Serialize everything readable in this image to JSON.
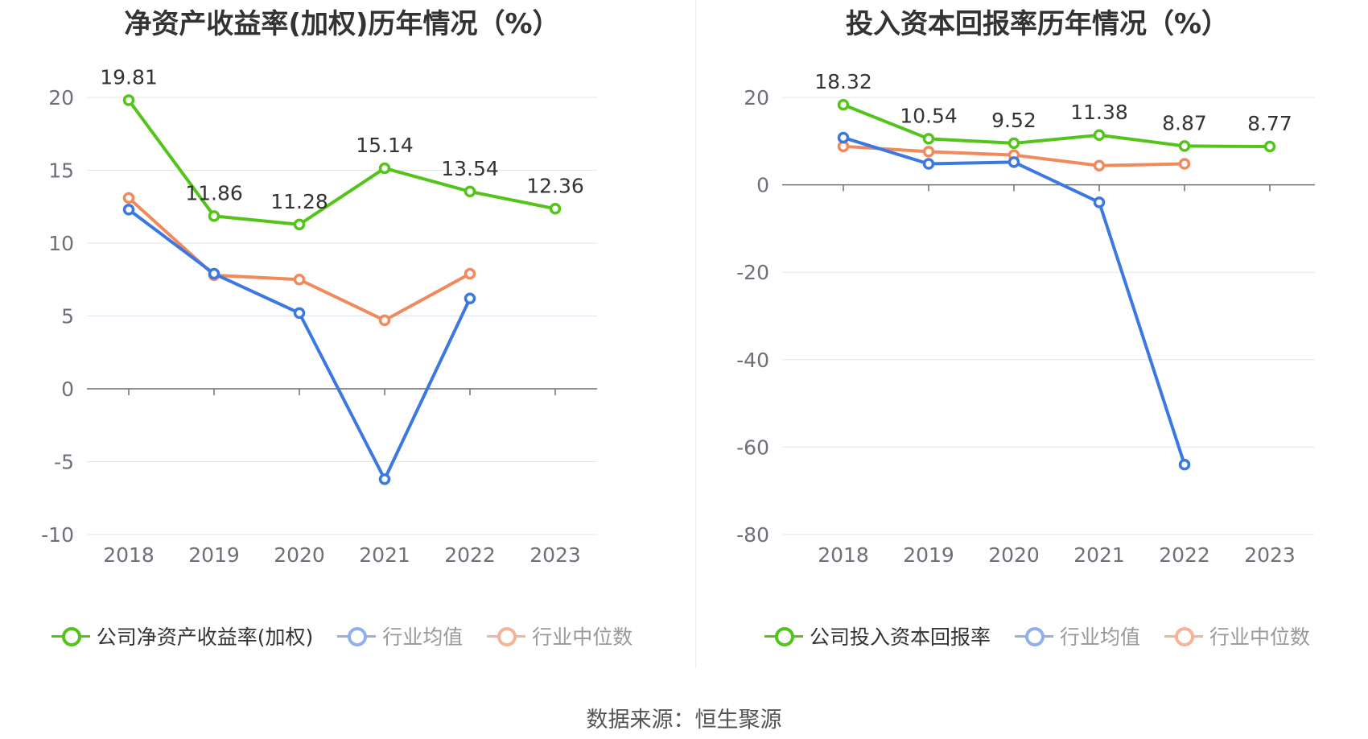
{
  "charts": [
    {
      "title": "净资产收益率(加权)历年情况（%）",
      "legend": [
        {
          "label": "公司净资产收益率(加权)",
          "color": "#52c41a",
          "text_color": "#333333"
        },
        {
          "label": "行业均值",
          "color": "#8fb0ea",
          "text_color": "#999999"
        },
        {
          "label": "行业中位数",
          "color": "#f5b49a",
          "text_color": "#999999"
        }
      ]
    },
    {
      "title": "投入资本回报率历年情况（%）",
      "legend": [
        {
          "label": "公司投入资本回报率",
          "color": "#52c41a",
          "text_color": "#333333"
        },
        {
          "label": "行业均值",
          "color": "#8fb0ea",
          "text_color": "#999999"
        },
        {
          "label": "行业中位数",
          "color": "#f5b49a",
          "text_color": "#999999"
        }
      ]
    }
  ],
  "chart_data": [
    {
      "type": "line",
      "title": "净资产收益率(加权)历年情况（%）",
      "categories": [
        "2018",
        "2019",
        "2020",
        "2021",
        "2022",
        "2023"
      ],
      "ylim": [
        -10,
        20
      ],
      "yticks": [
        20,
        15,
        10,
        5,
        0,
        -5,
        -10
      ],
      "grid": true,
      "legend_position": "bottom",
      "series": [
        {
          "name": "公司净资产收益率(加权)",
          "color": "#52c41a",
          "values": [
            19.81,
            11.86,
            11.28,
            15.14,
            13.54,
            12.36
          ],
          "labels": [
            "19.81",
            "11.86",
            "11.28",
            "15.14",
            "13.54",
            "12.36"
          ]
        },
        {
          "name": "行业均值",
          "color": "#3b78e0",
          "values": [
            12.3,
            7.9,
            5.2,
            -6.2,
            6.2,
            null
          ]
        },
        {
          "name": "行业中位数",
          "color": "#f08a5d",
          "values": [
            13.1,
            7.8,
            7.5,
            4.7,
            7.9,
            null
          ]
        }
      ]
    },
    {
      "type": "line",
      "title": "投入资本回报率历年情况（%）",
      "categories": [
        "2018",
        "2019",
        "2020",
        "2021",
        "2022",
        "2023"
      ],
      "ylim": [
        -80,
        20
      ],
      "yticks": [
        20,
        0,
        -20,
        -40,
        -60,
        -80
      ],
      "grid": true,
      "legend_position": "bottom",
      "series": [
        {
          "name": "公司投入资本回报率",
          "color": "#52c41a",
          "values": [
            18.32,
            10.54,
            9.52,
            11.38,
            8.87,
            8.77
          ],
          "labels": [
            "18.32",
            "10.54",
            "9.52",
            "11.38",
            "8.87",
            "8.77"
          ]
        },
        {
          "name": "行业均值",
          "color": "#3b78e0",
          "values": [
            10.8,
            4.8,
            5.2,
            -4.0,
            -64.0,
            null
          ]
        },
        {
          "name": "行业中位数",
          "color": "#f08a5d",
          "values": [
            8.8,
            7.6,
            6.8,
            4.4,
            4.8,
            null
          ]
        }
      ]
    }
  ],
  "source": "数据来源：恒生聚源"
}
